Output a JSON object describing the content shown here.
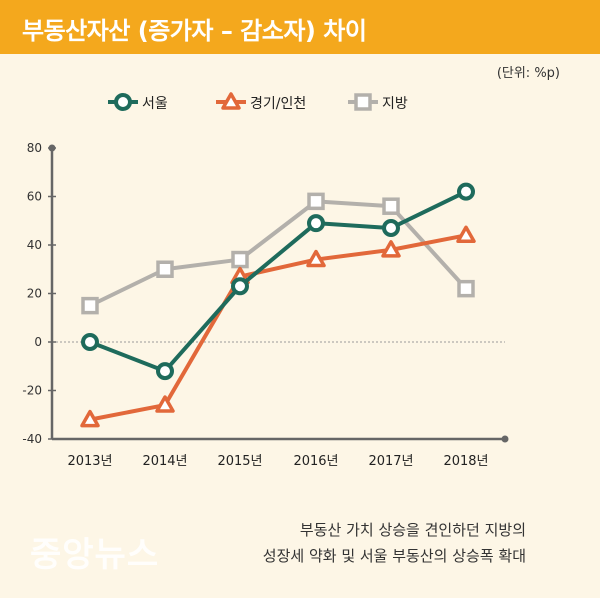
{
  "header": {
    "title": "부동산자산 (증가자 – 감소자) 차이"
  },
  "unit": "(단위: %p)",
  "caption": {
    "line1": "부동산 가치 상승을 견인하던 지방의",
    "line2": "성장세 약화 및 서울 부동산의 상승폭 확대"
  },
  "watermark": "중앙뉴스",
  "colors": {
    "header_bg": "#f4a81d",
    "seoul": "#1e6b5c",
    "gyeonggi": "#e2683a",
    "region": "#b3b0ab",
    "axis": "#666666"
  },
  "chart_data": {
    "type": "line",
    "categories": [
      "2013년",
      "2014년",
      "2015년",
      "2016년",
      "2017년",
      "2018년"
    ],
    "series": [
      {
        "name": "서울",
        "marker": "circle",
        "values": [
          0,
          -12,
          23,
          49,
          47,
          62
        ]
      },
      {
        "name": "경기/인천",
        "marker": "triangle",
        "values": [
          -32,
          -26,
          27,
          34,
          38,
          44
        ]
      },
      {
        "name": "지방",
        "marker": "square",
        "values": [
          15,
          30,
          34,
          58,
          56,
          22
        ]
      }
    ],
    "yticks": [
      80,
      60,
      40,
      20,
      0,
      -20,
      -40
    ],
    "ylim": [
      -40,
      80
    ],
    "xlabel": "",
    "ylabel": "",
    "legend": "top",
    "grid": false
  }
}
